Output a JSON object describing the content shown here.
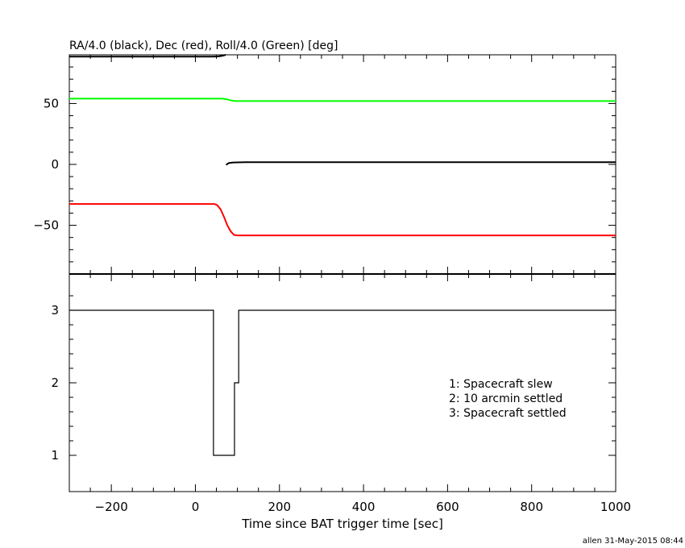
{
  "chart_data": [
    {
      "type": "line",
      "title": "RA/4.0 (black), Dec (red), Roll/4.0 (Green) [deg]",
      "xlim": [
        -300,
        1000
      ],
      "ylim": [
        -90,
        90
      ],
      "yticks": [
        -50,
        0,
        50
      ],
      "series": [
        {
          "name": "RA/4.0",
          "color": "#000000",
          "segments": [
            [
              [
                -300,
                88.5
              ],
              [
                40,
                88.5
              ],
              [
                55,
                88.7
              ],
              [
                65,
                89.3
              ],
              [
                72,
                90
              ]
            ],
            [
              [
                73,
                -0.3
              ],
              [
                80,
                1.2
              ],
              [
                90,
                1.6
              ],
              [
                120,
                1.8
              ],
              [
                335,
                1.8
              ],
              [
                1000,
                1.8
              ]
            ]
          ]
        },
        {
          "name": "Dec",
          "color": "#ff0000",
          "points": [
            [
              -300,
              -32.5
            ],
            [
              45,
              -32.5
            ],
            [
              52,
              -33.5
            ],
            [
              60,
              -37
            ],
            [
              68,
              -43
            ],
            [
              76,
              -50
            ],
            [
              84,
              -55
            ],
            [
              92,
              -58
            ],
            [
              100,
              -58.3
            ],
            [
              335,
              -58.3
            ],
            [
              1000,
              -58.3
            ]
          ]
        },
        {
          "name": "Roll/4.0",
          "color": "#00ff00",
          "points": [
            [
              -300,
              54
            ],
            [
              65,
              54
            ],
            [
              75,
              53.5
            ],
            [
              85,
              52.5
            ],
            [
              95,
              52
            ],
            [
              335,
              52
            ],
            [
              1000,
              52
            ]
          ]
        }
      ]
    },
    {
      "type": "step",
      "xlabel": "Time since BAT trigger time [sec]",
      "xlim": [
        -300,
        1000
      ],
      "ylim": [
        0.5,
        3.5
      ],
      "xticks": [
        -200,
        0,
        200,
        400,
        600,
        800,
        1000
      ],
      "yticks": [
        1,
        2,
        3
      ],
      "steps": [
        [
          -300,
          3
        ],
        [
          43,
          1
        ],
        [
          93,
          2
        ],
        [
          103,
          3
        ],
        [
          1000,
          3
        ]
      ],
      "legend": [
        "1: Spacecraft slew",
        "2: 10 arcmin settled",
        "3: Spacecraft settled"
      ]
    }
  ],
  "footer": "allen 31-May-2015 08:44"
}
